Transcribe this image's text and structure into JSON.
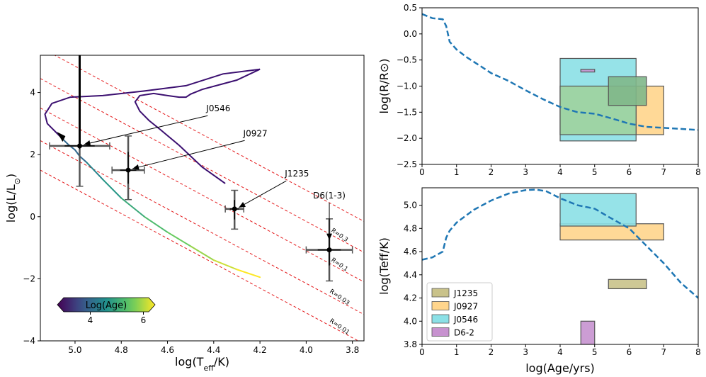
{
  "colors": {
    "track": "#3b0f70",
    "dash": "#e41a1c",
    "model": "#1f77b4",
    "errbar": "#555555"
  },
  "chart_data": [
    {
      "id": "hr",
      "type": "scatter",
      "xlabel": "log(T",
      "xlabel_sub": "eff",
      "xlabel_tail": "/K)",
      "ylabel": "log(L/L",
      "ylabel_tail": ")",
      "xlim": [
        5.15,
        3.75
      ],
      "ylim": [
        -4,
        5.2
      ],
      "xticks": [
        5.0,
        4.8,
        4.6,
        4.4,
        4.2,
        4.0,
        3.8
      ],
      "xtick_labels": [
        "5.0",
        "4.8",
        "4.6",
        "4.4",
        "4.2",
        "4.0",
        "3.8"
      ],
      "yticks": [
        -4,
        -2,
        0,
        2,
        4
      ],
      "ytick_labels": [
        "−4",
        "−2",
        "0",
        "2",
        "4"
      ],
      "iso_lines": [
        {
          "label": "R=0.01",
          "intercept": 1.5,
          "label_x": 3.86
        },
        {
          "label": "R=0.03",
          "intercept": 2.45,
          "label_x": 3.86
        },
        {
          "label": "R=0.1",
          "intercept": 3.5,
          "label_x": 3.86
        },
        {
          "label": "R=0.3",
          "intercept": 4.45,
          "label_x": 3.86
        },
        {
          "label": "",
          "intercept": 5.45,
          "label_x": 3.86
        }
      ],
      "iso_slope": 4,
      "objects": [
        {
          "name": "J0546",
          "x": 4.98,
          "y": 2.28,
          "xerr": 0.13,
          "yerr_lo": 1.3,
          "yerr_hi": 3.5,
          "label_x": 4.38,
          "label_y": 3.3
        },
        {
          "name": "J0927",
          "x": 4.77,
          "y": 1.5,
          "xerr": 0.07,
          "yerr_lo": 0.95,
          "yerr_hi": 1.1,
          "label_x": 4.22,
          "label_y": 2.5
        },
        {
          "name": "J1235",
          "x": 4.31,
          "y": 0.25,
          "xerr": 0.04,
          "yerr_lo": 0.65,
          "yerr_hi": 0.6,
          "label_x": 4.04,
          "label_y": 1.2
        },
        {
          "name": "D6(1-3)",
          "x": 3.9,
          "y": -1.07,
          "xerr": 0.1,
          "yerr_lo": 1.0,
          "yerr_hi": 1.0,
          "label_x": 3.9,
          "label_y": 0.5
        }
      ],
      "colorbar": {
        "label": "Log(Age)",
        "ticks": [
          4,
          6
        ],
        "tick_labels": [
          "4",
          "6"
        ],
        "range": [
          3,
          6.2
        ]
      },
      "track_dark": [
        [
          4.35,
          1.07
        ],
        [
          4.45,
          1.6
        ],
        [
          4.55,
          2.3
        ],
        [
          4.63,
          2.8
        ],
        [
          4.68,
          3.1
        ],
        [
          4.72,
          3.4
        ],
        [
          4.74,
          3.7
        ],
        [
          4.72,
          3.9
        ],
        [
          4.66,
          3.97
        ],
        [
          4.6,
          3.9
        ],
        [
          4.55,
          3.85
        ],
        [
          4.52,
          3.85
        ],
        [
          4.5,
          3.95
        ],
        [
          4.45,
          4.1
        ],
        [
          4.3,
          4.4
        ],
        [
          4.2,
          4.75
        ],
        [
          4.36,
          4.6
        ],
        [
          4.52,
          4.22
        ],
        [
          4.7,
          4.05
        ],
        [
          4.88,
          3.9
        ],
        [
          5.02,
          3.85
        ],
        [
          5.1,
          3.65
        ],
        [
          5.13,
          3.3
        ],
        [
          5.12,
          3.0
        ],
        [
          5.08,
          2.7
        ],
        [
          5.06,
          2.55
        ]
      ],
      "track_young": [
        [
          5.06,
          2.55
        ],
        [
          5.03,
          2.33
        ],
        [
          5.0,
          2.15
        ],
        [
          4.98,
          1.95
        ],
        [
          4.95,
          1.75
        ]
      ],
      "track_age": [
        [
          4.95,
          1.75
        ],
        [
          4.88,
          1.2
        ],
        [
          4.8,
          0.6
        ],
        [
          4.7,
          0.0
        ],
        [
          4.6,
          -0.5
        ],
        [
          4.5,
          -0.95
        ],
        [
          4.4,
          -1.4
        ],
        [
          4.3,
          -1.7
        ],
        [
          4.2,
          -1.95
        ]
      ]
    },
    {
      "id": "radius",
      "type": "line",
      "xlabel": "",
      "ylabel": "log(R/R",
      "ylabel_tail": ")",
      "xlim": [
        0,
        8
      ],
      "ylim": [
        -2.5,
        0.5
      ],
      "xticks": [
        0,
        1,
        2,
        3,
        4,
        5,
        6,
        7,
        8
      ],
      "xtick_labels": [
        "0",
        "1",
        "2",
        "3",
        "4",
        "5",
        "6",
        "7",
        "8"
      ],
      "yticks": [
        -2.5,
        -2.0,
        -1.5,
        -1.0,
        -0.5,
        0.0,
        0.5
      ],
      "ytick_labels": [
        "−2.5",
        "−2.0",
        "−1.5",
        "−1.0",
        "−0.5",
        "0.0",
        "0.5"
      ],
      "model": [
        [
          0,
          0.38
        ],
        [
          0.3,
          0.3
        ],
        [
          0.6,
          0.28
        ],
        [
          0.7,
          0.15
        ],
        [
          0.8,
          -0.15
        ],
        [
          1.0,
          -0.3
        ],
        [
          1.3,
          -0.45
        ],
        [
          1.7,
          -0.62
        ],
        [
          2.0,
          -0.75
        ],
        [
          2.5,
          -0.9
        ],
        [
          3.0,
          -1.08
        ],
        [
          3.5,
          -1.25
        ],
        [
          4.0,
          -1.4
        ],
        [
          4.5,
          -1.5
        ],
        [
          5.0,
          -1.53
        ],
        [
          5.5,
          -1.62
        ],
        [
          6.0,
          -1.72
        ],
        [
          6.5,
          -1.78
        ],
        [
          7.0,
          -1.8
        ],
        [
          7.5,
          -1.82
        ],
        [
          8.0,
          -1.84
        ]
      ],
      "boxes": [
        {
          "name": "J0927",
          "x0": 4.0,
          "x1": 7.0,
          "y0": -1.93,
          "y1": -1.0,
          "color": "#ffd58c"
        },
        {
          "name": "J0546",
          "x0": 4.0,
          "x1": 6.2,
          "y0": -2.05,
          "y1": -0.47,
          "color": "#8be0e6"
        },
        {
          "name": "J0546-J0927",
          "x0": 4.0,
          "x1": 6.2,
          "y0": -1.93,
          "y1": -1.0,
          "color": "#9fd39f"
        },
        {
          "name": "J1235",
          "x0": 5.4,
          "x1": 6.5,
          "y0": -1.37,
          "y1": -0.82,
          "color": "#80b78a"
        },
        {
          "name": "D6-2",
          "x0": 4.6,
          "x1": 5.0,
          "y0": -0.73,
          "y1": -0.68,
          "color": "#c792cf"
        }
      ]
    },
    {
      "id": "teff",
      "type": "line",
      "xlabel": "log(Age/yrs)",
      "ylabel": "log(Teff/K)",
      "xlim": [
        0,
        8
      ],
      "ylim": [
        3.8,
        5.15
      ],
      "xticks": [
        0,
        1,
        2,
        3,
        4,
        5,
        6,
        7,
        8
      ],
      "xtick_labels": [
        "0",
        "1",
        "2",
        "3",
        "4",
        "5",
        "6",
        "7",
        "8"
      ],
      "yticks": [
        3.8,
        4.0,
        4.2,
        4.4,
        4.6,
        4.8,
        5.0
      ],
      "ytick_labels": [
        "3.8",
        "4.0",
        "4.2",
        "4.4",
        "4.6",
        "4.8",
        "5.0"
      ],
      "model": [
        [
          0,
          4.53
        ],
        [
          0.3,
          4.55
        ],
        [
          0.6,
          4.6
        ],
        [
          0.7,
          4.72
        ],
        [
          0.8,
          4.78
        ],
        [
          1.0,
          4.85
        ],
        [
          1.5,
          4.96
        ],
        [
          2.0,
          5.04
        ],
        [
          2.5,
          5.1
        ],
        [
          3.0,
          5.13
        ],
        [
          3.3,
          5.135
        ],
        [
          3.6,
          5.12
        ],
        [
          4.0,
          5.06
        ],
        [
          4.5,
          5.0
        ],
        [
          5.0,
          4.97
        ],
        [
          5.4,
          4.9
        ],
        [
          6.0,
          4.8
        ],
        [
          6.5,
          4.65
        ],
        [
          7.0,
          4.5
        ],
        [
          7.5,
          4.33
        ],
        [
          8.0,
          4.2
        ]
      ],
      "boxes": [
        {
          "name": "J0927",
          "x0": 4.0,
          "x1": 7.0,
          "y0": 4.7,
          "y1": 4.84,
          "color": "#ffd58c"
        },
        {
          "name": "J0546",
          "x0": 4.0,
          "x1": 6.2,
          "y0": 4.82,
          "y1": 5.1,
          "color": "#8be0e6"
        },
        {
          "name": "J1235",
          "x0": 5.4,
          "x1": 6.5,
          "y0": 4.28,
          "y1": 4.36,
          "color": "#c9c28a"
        },
        {
          "name": "D6-2",
          "x0": 4.6,
          "x1": 5.0,
          "y0": 3.8,
          "y1": 4.0,
          "color": "#c792cf"
        }
      ],
      "legend": {
        "position": "lower-left",
        "entries": [
          {
            "label": "J1235",
            "color": "#c9c28a"
          },
          {
            "label": "J0927",
            "color": "#ffd58c"
          },
          {
            "label": "J0546",
            "color": "#8be0e6"
          },
          {
            "label": "D6-2",
            "color": "#c792cf"
          }
        ]
      }
    }
  ]
}
